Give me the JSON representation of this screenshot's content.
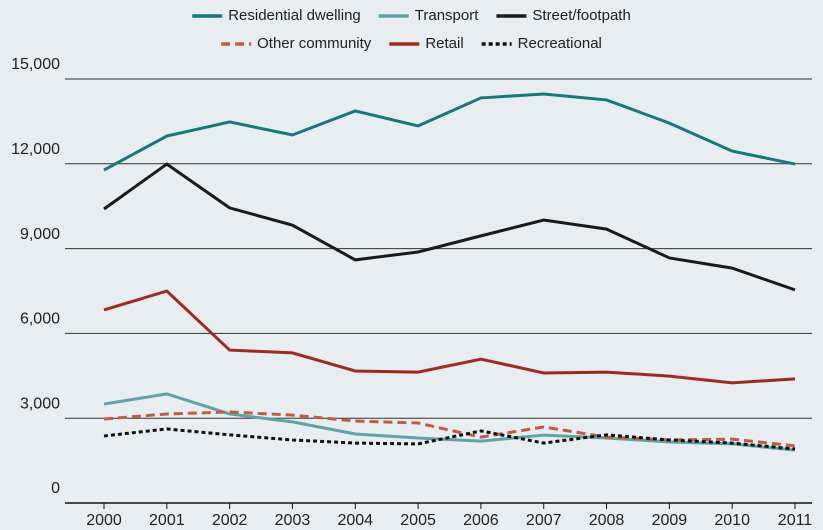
{
  "chart_data": {
    "type": "line",
    "categories": [
      "2000",
      "2001",
      "2002",
      "2003",
      "2004",
      "2005",
      "2006",
      "2007",
      "2008",
      "2009",
      "2010",
      "2011"
    ],
    "series": [
      {
        "name": "Residential dwelling",
        "color": "#0f7b7b",
        "dash": "solid",
        "values": [
          11780,
          12980,
          13480,
          13020,
          13870,
          13340,
          14330,
          14470,
          14260,
          13440,
          12450,
          11990
        ]
      },
      {
        "name": "Transport",
        "color": "#5ea3a8",
        "dash": "solid",
        "values": [
          3500,
          3860,
          3150,
          2870,
          2440,
          2300,
          2190,
          2400,
          2300,
          2160,
          2090,
          1870
        ]
      },
      {
        "name": "Street/footpath",
        "color": "#1a1a1a",
        "dash": "solid",
        "values": [
          10400,
          11990,
          10440,
          9830,
          8600,
          8880,
          9450,
          10010,
          9690,
          8670,
          8310,
          7540
        ]
      },
      {
        "name": "Other community",
        "color": "#c45a40",
        "dash": "dashed",
        "values": [
          2970,
          3150,
          3220,
          3110,
          2900,
          2830,
          2330,
          2690,
          2330,
          2230,
          2260,
          2020
        ]
      },
      {
        "name": "Retail",
        "color": "#a3291f",
        "dash": "solid",
        "values": [
          6830,
          7500,
          5410,
          5310,
          4670,
          4630,
          5090,
          4600,
          4630,
          4490,
          4250,
          4390
        ]
      },
      {
        "name": "Recreational",
        "color": "#111111",
        "dash": "dotted",
        "values": [
          2370,
          2620,
          2410,
          2230,
          2120,
          2090,
          2550,
          2120,
          2410,
          2230,
          2120,
          1910
        ]
      }
    ],
    "ylim": [
      0,
      15000
    ],
    "yticks": [
      0,
      {
        "value": 3000,
        "label": "3,000"
      },
      {
        "value": 6000,
        "label": "6,000"
      },
      {
        "value": 9000,
        "label": "9,000"
      },
      {
        "value": 12000,
        "label": "12,000"
      },
      {
        "value": 15000,
        "label": "15,000"
      }
    ],
    "grid": true,
    "legend": "top"
  }
}
